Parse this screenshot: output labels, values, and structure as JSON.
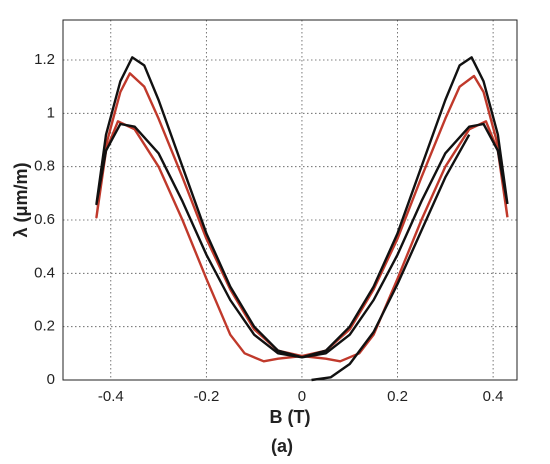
{
  "chart_data": {
    "type": "line",
    "xlabel": "B (T)",
    "ylabel": "λ (μm/m)",
    "caption": "(a)",
    "xlim": [
      -0.5,
      0.45
    ],
    "ylim": [
      0,
      1.35
    ],
    "xticks": [
      -0.4,
      -0.2,
      0,
      0.2,
      0.4
    ],
    "yticks": [
      0,
      0.2,
      0.4,
      0.6,
      0.8,
      1,
      1.2
    ],
    "grid": true,
    "series": [
      {
        "color": "#c0392b",
        "x": [
          0.43,
          0.41,
          0.38,
          0.36,
          0.33,
          0.3,
          0.25,
          0.2,
          0.15,
          0.1,
          0.05,
          0,
          -0.05,
          -0.08,
          -0.12,
          -0.15,
          -0.2,
          -0.25,
          -0.3,
          -0.35,
          -0.385,
          -0.41,
          -0.43,
          -0.41,
          -0.38,
          -0.36,
          -0.33,
          -0.3,
          -0.25,
          -0.2,
          -0.15,
          -0.1,
          -0.05,
          0,
          0.05,
          0.08,
          0.12,
          0.15,
          0.2,
          0.25,
          0.3,
          0.35,
          0.385,
          0.41,
          0.43
        ],
        "y": [
          0.61,
          0.88,
          1.08,
          1.14,
          1.1,
          0.98,
          0.76,
          0.53,
          0.34,
          0.19,
          0.11,
          0.09,
          0.08,
          0.07,
          0.1,
          0.17,
          0.38,
          0.6,
          0.8,
          0.94,
          0.97,
          0.86,
          0.61,
          0.88,
          1.08,
          1.15,
          1.1,
          0.98,
          0.76,
          0.53,
          0.34,
          0.19,
          0.11,
          0.09,
          0.08,
          0.07,
          0.1,
          0.17,
          0.38,
          0.6,
          0.8,
          0.94,
          0.97,
          0.86,
          0.61
        ]
      },
      {
        "color": "#111111",
        "x": [
          0.43,
          0.41,
          0.38,
          0.355,
          0.33,
          0.3,
          0.25,
          0.2,
          0.15,
          0.1,
          0.05,
          0,
          -0.05,
          -0.1,
          -0.15,
          -0.2,
          -0.25,
          -0.3,
          -0.35,
          -0.38,
          -0.41,
          -0.43,
          -0.41,
          -0.38,
          -0.355,
          -0.33,
          -0.3,
          -0.25,
          -0.2,
          -0.15,
          -0.1,
          -0.05,
          0,
          0.05,
          0.1,
          0.15,
          0.2,
          0.25,
          0.3,
          0.35,
          0.38,
          0.41,
          0.43,
          null,
          0.02,
          0.06,
          0.1,
          0.15,
          0.2,
          0.25,
          0.3,
          0.35
        ],
        "y": [
          0.66,
          0.92,
          1.12,
          1.21,
          1.18,
          1.05,
          0.8,
          0.55,
          0.35,
          0.2,
          0.11,
          0.085,
          0.1,
          0.17,
          0.3,
          0.47,
          0.67,
          0.85,
          0.95,
          0.96,
          0.86,
          0.66,
          0.92,
          1.12,
          1.21,
          1.18,
          1.05,
          0.8,
          0.55,
          0.35,
          0.2,
          0.11,
          0.085,
          0.1,
          0.17,
          0.3,
          0.47,
          0.67,
          0.85,
          0.95,
          0.96,
          0.86,
          0.66,
          null,
          0,
          0.01,
          0.06,
          0.18,
          0.36,
          0.56,
          0.76,
          0.92
        ]
      }
    ]
  }
}
